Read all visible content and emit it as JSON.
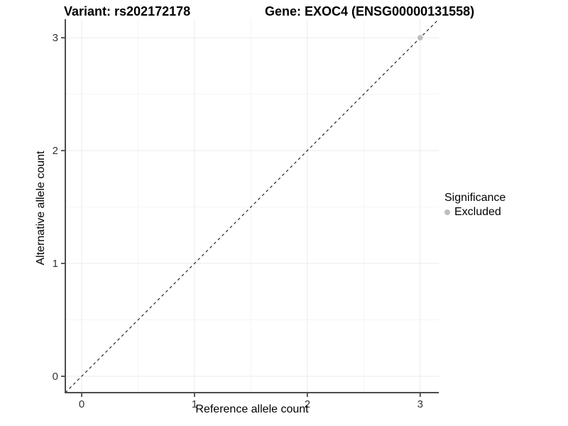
{
  "chart_data": {
    "type": "scatter",
    "titles": [
      "Variant: rs202172178",
      "Gene: EXOC4 (ENSG00000131558)"
    ],
    "xlabel": "Reference allele count",
    "ylabel": "Alternative allele count",
    "xticks": [
      0,
      1,
      2,
      3
    ],
    "yticks": [
      0,
      1,
      2,
      3
    ],
    "minor_xticks": [
      0.5,
      1.5,
      2.5
    ],
    "minor_yticks": [
      0.5,
      1.5,
      2.5
    ],
    "xlim": [
      -0.145,
      3.165
    ],
    "ylim": [
      -0.145,
      3.165
    ],
    "grid": true,
    "aspect": "equal",
    "points": [
      {
        "x": 3,
        "y": 3,
        "significance": "Excluded"
      }
    ],
    "identity_line": {
      "slope": 1,
      "intercept": 0,
      "style": "dashed"
    },
    "legend": {
      "title": "Significance",
      "position": "right",
      "entries": [
        {
          "label": "Excluded",
          "color": "#bebebe"
        }
      ]
    },
    "colors": {
      "background": "#ffffff",
      "grid_major": "#ebebeb",
      "grid_minor": "#f5f5f5",
      "axis_line": "#4d4d4d",
      "tick_mark": "#333333",
      "tick_label": "#333333",
      "dashed_line": "#000000",
      "point": "#bebebe",
      "text": "#000000"
    }
  }
}
